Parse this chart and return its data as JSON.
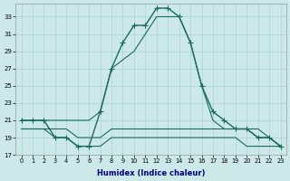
{
  "xlabel": "Humidex (Indice chaleur)",
  "x": [
    0,
    1,
    2,
    3,
    4,
    5,
    6,
    7,
    8,
    9,
    10,
    11,
    12,
    13,
    14,
    15,
    16,
    17,
    18,
    19,
    20,
    21,
    22,
    23
  ],
  "curve_main": [
    21,
    21,
    21,
    19,
    19,
    18,
    18,
    22,
    27,
    30,
    32,
    32,
    34,
    34,
    33,
    30,
    25,
    22,
    21,
    20,
    20,
    19,
    19,
    18
  ],
  "curve_upper": [
    21,
    21,
    21,
    21,
    21,
    21,
    21,
    22,
    27,
    28,
    29,
    31,
    33,
    33,
    33,
    30,
    25,
    21,
    20,
    20,
    20,
    20,
    19,
    18
  ],
  "curve_flat1": [
    20,
    20,
    20,
    20,
    20,
    19,
    19,
    19,
    20,
    20,
    20,
    20,
    20,
    20,
    20,
    20,
    20,
    20,
    20,
    20,
    20,
    19,
    19,
    18
  ],
  "curve_flat2": [
    20,
    20,
    20,
    19,
    19,
    18,
    18,
    18,
    19,
    19,
    19,
    19,
    19,
    19,
    19,
    19,
    19,
    19,
    19,
    19,
    18,
    18,
    18,
    18
  ],
  "bg_color": "#cce8e8",
  "grid_color": "#a8d4d4",
  "line_color": "#1a6b5a",
  "ylim_min": 17,
  "ylim_max": 34,
  "yticks": [
    17,
    19,
    21,
    23,
    25,
    27,
    29,
    31,
    33
  ],
  "xticks": [
    0,
    1,
    2,
    3,
    4,
    5,
    6,
    7,
    8,
    9,
    10,
    11,
    12,
    13,
    14,
    15,
    16,
    17,
    18,
    19,
    20,
    21,
    22,
    23
  ]
}
